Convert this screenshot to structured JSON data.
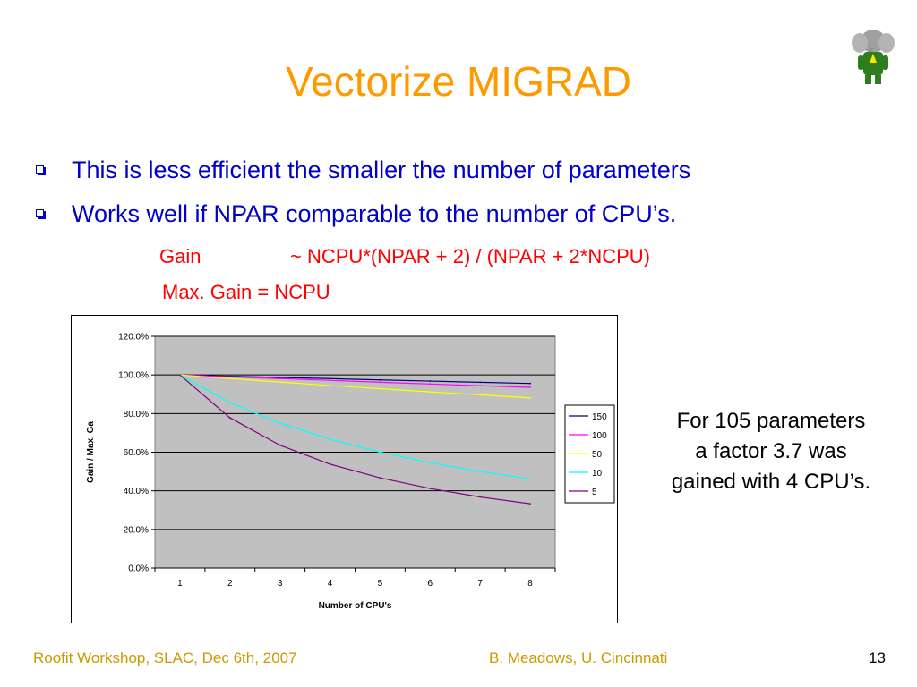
{
  "slide": {
    "title": "Vectorize MIGRAD",
    "bullets": [
      "This is less efficient the smaller the number of parameters",
      "Works well if NPAR  comparable to the number of CPU’s."
    ],
    "formula_label": "Gain",
    "formula_expr": "~ NCPU*(NPAR + 2) / (NPAR + 2*NCPU)",
    "max_gain": "Max. Gain = NCPU",
    "side_note": [
      "For 105 parameters",
      "a factor 3.7 was",
      "gained with 4 CPU’s."
    ],
    "logo_caption": "",
    "footer_left": "Roofit Workshop, SLAC, Dec 6th, 2007",
    "footer_mid": "B. Meadows, U. Cincinnati",
    "page_number": "13"
  },
  "colors": {
    "title": "#ff9900",
    "bullet": "#0000cc",
    "formula": "#ff0000",
    "footer": "#cc9900",
    "plot_bg": "#c0c0c0"
  },
  "chart_data": {
    "type": "line",
    "xlabel": "Number of CPU's",
    "ylabel": "Gain / Max. Ga",
    "categories": [
      "1",
      "2",
      "3",
      "4",
      "5",
      "6",
      "7",
      "8"
    ],
    "ylim": [
      0,
      120
    ],
    "yticks": [
      "0.0%",
      "20.0%",
      "40.0%",
      "60.0%",
      "80.0%",
      "100.0%",
      "120.0%"
    ],
    "grid": "horizontal",
    "legend": "right",
    "series": [
      {
        "name": "150",
        "color": "#000080",
        "values": [
          100.0,
          99.3,
          98.7,
          98.1,
          97.4,
          96.8,
          96.2,
          95.6
        ]
      },
      {
        "name": "100",
        "color": "#ff00ff",
        "values": [
          100.0,
          99.0,
          98.1,
          97.2,
          96.2,
          95.3,
          94.4,
          93.6
        ]
      },
      {
        "name": "50",
        "color": "#ffff00",
        "values": [
          100.0,
          98.1,
          96.3,
          94.5,
          92.9,
          91.2,
          89.7,
          88.1
        ]
      },
      {
        "name": "10",
        "color": "#00ffff",
        "values": [
          100.0,
          85.7,
          75.0,
          66.7,
          60.0,
          54.5,
          50.0,
          46.2
        ]
      },
      {
        "name": "5",
        "color": "#800080",
        "values": [
          100.0,
          77.8,
          63.6,
          53.8,
          46.7,
          41.2,
          36.8,
          33.3
        ]
      }
    ]
  }
}
